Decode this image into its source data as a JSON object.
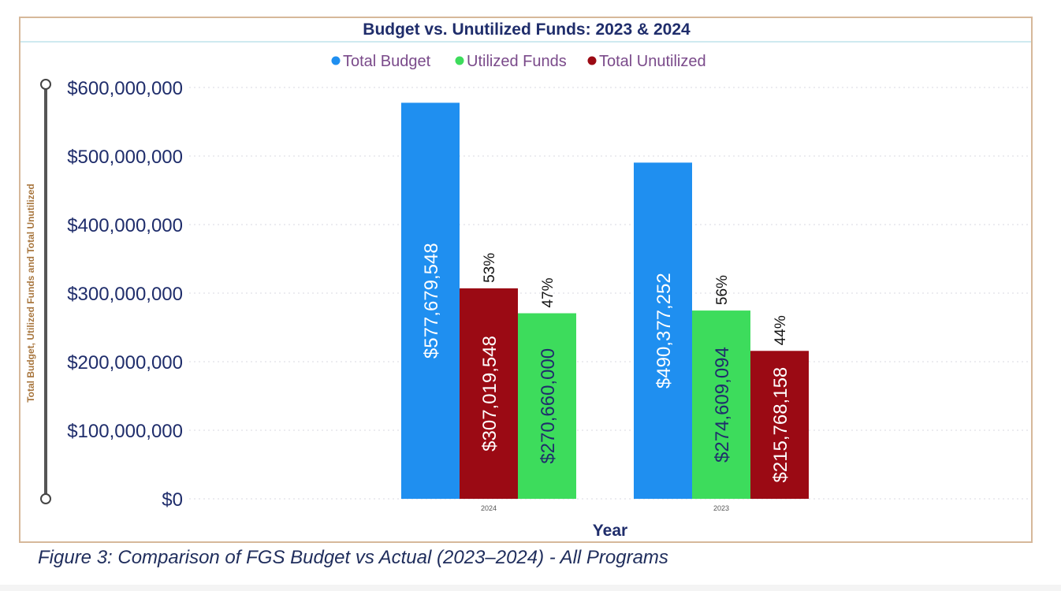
{
  "chart_data": {
    "type": "bar",
    "title": "Budget vs. Unutilized Funds: 2023 & 2024",
    "xlabel": "Year",
    "ylabel": "Total Budget, Utilized Funds and Total Unutilized",
    "ylim": [
      0,
      600000000
    ],
    "y_ticks": [
      "$600,000,000",
      "$500,000,000",
      "$400,000,000",
      "$300,000,000",
      "$200,000,000",
      "$100,000,000",
      "$0"
    ],
    "y_tick_values": [
      600000000,
      500000000,
      400000000,
      300000000,
      200000000,
      100000000,
      0
    ],
    "grid": true,
    "legend_position": "top-center",
    "groups": [
      {
        "category": "2024",
        "bars": [
          {
            "series": "Total Budget",
            "value": 577679548,
            "label": "$577,679,548",
            "percent": ""
          },
          {
            "series": "Total Unutilized",
            "value": 307019548,
            "label": "$307,019,548",
            "percent": "53%"
          },
          {
            "series": "Utilized Funds",
            "value": 270660000,
            "label": "$270,660,000",
            "percent": "47%"
          }
        ]
      },
      {
        "category": "2023",
        "bars": [
          {
            "series": "Total Budget",
            "value": 490377252,
            "label": "$490,377,252",
            "percent": ""
          },
          {
            "series": "Utilized Funds",
            "value": 274609094,
            "label": "$274,609,094",
            "percent": "56%"
          },
          {
            "series": "Total Unutilized",
            "value": 215768158,
            "label": "$215,768,158",
            "percent": "44%"
          }
        ]
      }
    ],
    "legend": [
      {
        "name": "Total Budget",
        "color": "#1f8ff0"
      },
      {
        "name": "Utilized Funds",
        "color": "#3ddc5c"
      },
      {
        "name": "Total Unutilized",
        "color": "#9b0a14"
      }
    ]
  },
  "caption": "Figure 3: Comparison of FGS Budget vs Actual (2023–2024) - All Programs",
  "colors": {
    "title": "#1f2d6b",
    "axis_text": "#1f2d6b",
    "ylabel": "#a8763e",
    "legend_text": "#7a4a8a",
    "frame_border": "#d6b89a",
    "grid": "#d8d8e0"
  }
}
